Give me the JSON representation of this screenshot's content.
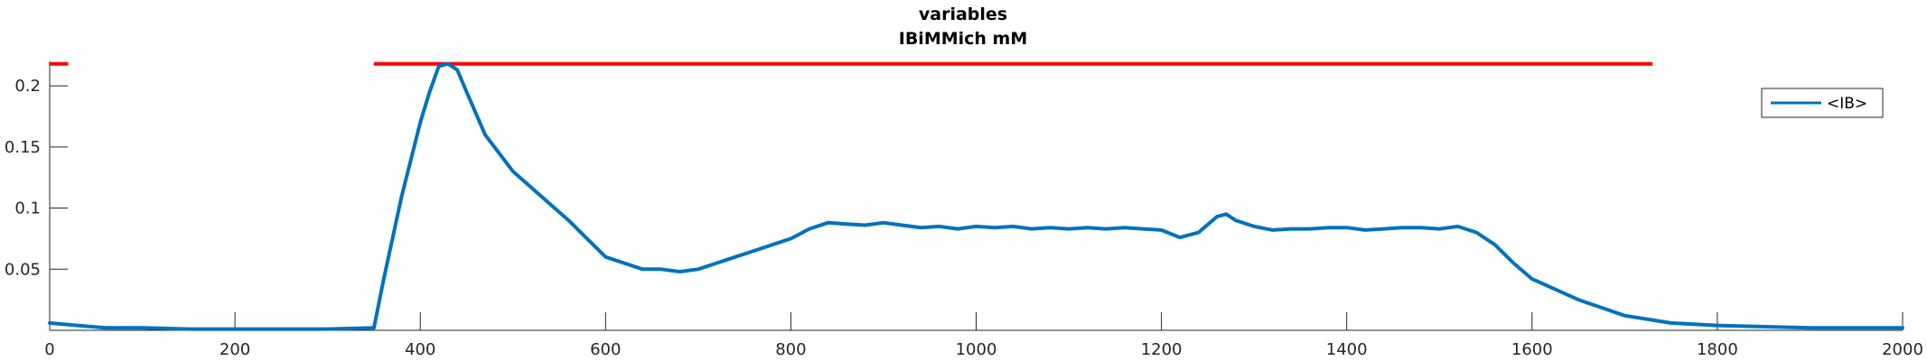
{
  "chart_data": {
    "type": "line",
    "title": "variables",
    "subtitle": "IBiMMich mM",
    "xlabel": "",
    "ylabel": "",
    "xlim": [
      0,
      2000
    ],
    "ylim": [
      0,
      0.22
    ],
    "xticks": [
      0,
      200,
      400,
      600,
      800,
      1000,
      1200,
      1400,
      1600,
      1800,
      2000
    ],
    "yticks": [
      0.05,
      0.1,
      0.15,
      0.2
    ],
    "ytick_labels": [
      "0.05",
      "0.1",
      "0.15",
      "0.2"
    ],
    "grid": false,
    "legend": {
      "entries": [
        "<IB>"
      ],
      "location": "top-right"
    },
    "series": [
      {
        "name": "<IB>",
        "color": "#0072bd",
        "x": [
          0,
          30,
          60,
          100,
          150,
          200,
          250,
          300,
          350,
          360,
          380,
          400,
          410,
          420,
          430,
          440,
          450,
          470,
          500,
          530,
          560,
          580,
          600,
          620,
          640,
          660,
          680,
          700,
          720,
          740,
          760,
          780,
          800,
          820,
          840,
          860,
          880,
          900,
          920,
          940,
          960,
          980,
          1000,
          1020,
          1040,
          1060,
          1080,
          1100,
          1120,
          1140,
          1160,
          1180,
          1200,
          1220,
          1240,
          1260,
          1270,
          1280,
          1300,
          1320,
          1340,
          1360,
          1380,
          1400,
          1420,
          1440,
          1460,
          1480,
          1500,
          1520,
          1540,
          1560,
          1580,
          1600,
          1650,
          1700,
          1750,
          1800,
          1900,
          1950,
          2000
        ],
        "values": [
          0.006,
          0.004,
          0.002,
          0.002,
          0.001,
          0.001,
          0.001,
          0.001,
          0.002,
          0.04,
          0.11,
          0.17,
          0.195,
          0.216,
          0.218,
          0.213,
          0.195,
          0.16,
          0.13,
          0.11,
          0.09,
          0.075,
          0.06,
          0.055,
          0.05,
          0.05,
          0.048,
          0.05,
          0.055,
          0.06,
          0.065,
          0.07,
          0.075,
          0.083,
          0.088,
          0.087,
          0.086,
          0.088,
          0.086,
          0.084,
          0.085,
          0.083,
          0.085,
          0.084,
          0.085,
          0.083,
          0.084,
          0.083,
          0.084,
          0.083,
          0.084,
          0.083,
          0.082,
          0.076,
          0.08,
          0.093,
          0.095,
          0.09,
          0.085,
          0.082,
          0.083,
          0.083,
          0.084,
          0.084,
          0.082,
          0.083,
          0.084,
          0.084,
          0.083,
          0.085,
          0.08,
          0.07,
          0.055,
          0.042,
          0.025,
          0.012,
          0.006,
          0.004,
          0.002,
          0.002,
          0.002
        ]
      }
    ],
    "reference_lines": [
      {
        "color": "#ff0000",
        "y": 0.218,
        "segments": [
          [
            0,
            20
          ],
          [
            350,
            1730
          ]
        ]
      }
    ]
  }
}
